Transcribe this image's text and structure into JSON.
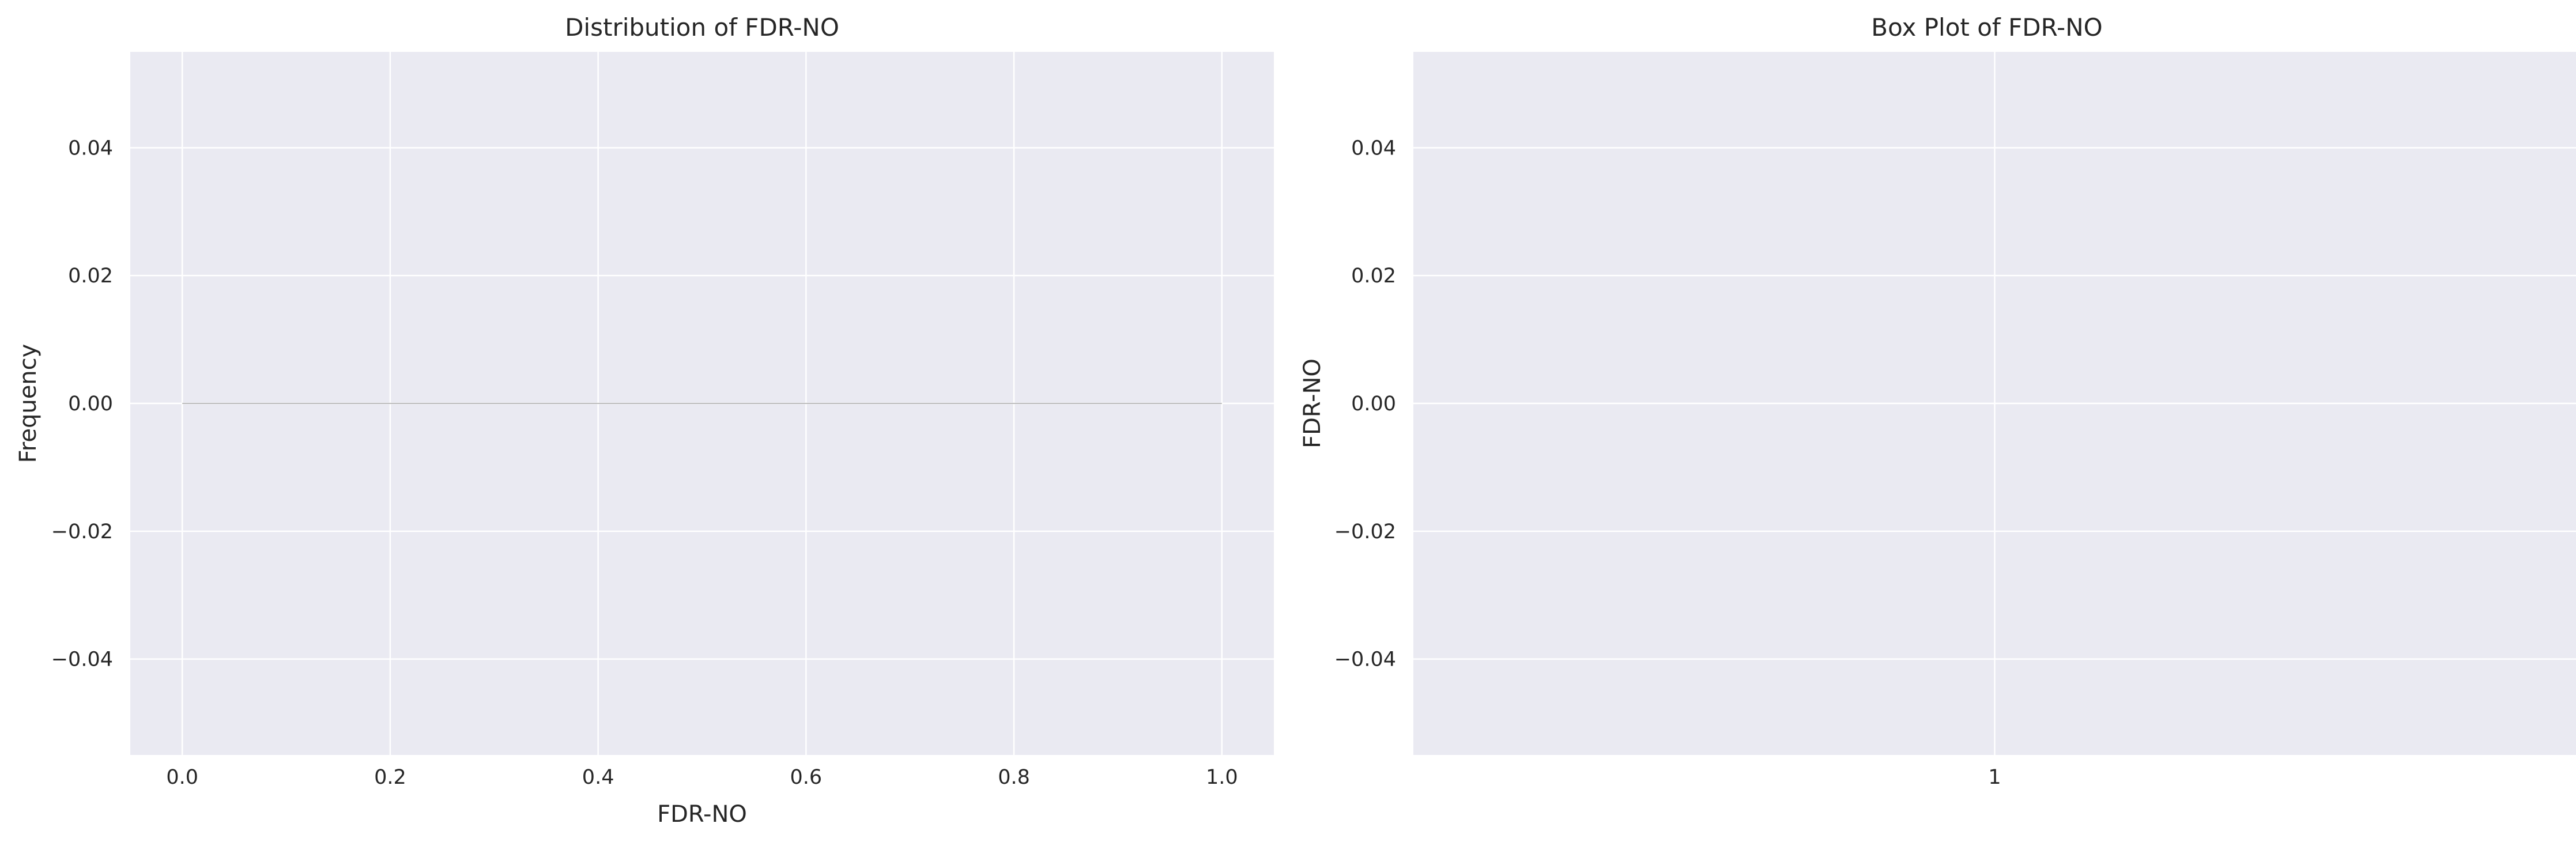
{
  "chart_data": [
    {
      "type": "bar",
      "title": "Distribution of FDR-NO",
      "xlabel": "FDR-NO",
      "ylabel": "Frequency",
      "xlim": [
        -0.05,
        1.05
      ],
      "ylim": [
        -0.055,
        0.055
      ],
      "xticks": [
        0.0,
        0.2,
        0.4,
        0.6,
        0.8,
        1.0
      ],
      "xtick_labels": [
        "0.0",
        "0.2",
        "0.4",
        "0.6",
        "0.8",
        "1.0"
      ],
      "yticks": [
        0.04,
        0.02,
        0.0,
        -0.02,
        -0.04
      ],
      "ytick_labels": [
        "0.04",
        "0.02",
        "0.00",
        "−0.02",
        "−0.04"
      ],
      "grid": true,
      "bars": [
        {
          "x0": 0.0,
          "x1": 1.0,
          "height": 0
        }
      ],
      "colors": {
        "background": "#eaeaf2",
        "grid": "#ffffff",
        "bar_edge": "#bdbdbd"
      }
    },
    {
      "type": "box",
      "title": "Box Plot of FDR-NO",
      "xlabel": "",
      "ylabel": "FDR-NO",
      "ylim": [
        -0.055,
        0.055
      ],
      "xticks": [
        1
      ],
      "xtick_labels": [
        "1"
      ],
      "yticks": [
        0.04,
        0.02,
        0.0,
        -0.02,
        -0.04
      ],
      "ytick_labels": [
        "0.04",
        "0.02",
        "0.00",
        "−0.02",
        "−0.04"
      ],
      "grid": true,
      "colors": {
        "background": "#eaeaf2",
        "grid": "#ffffff"
      }
    }
  ]
}
